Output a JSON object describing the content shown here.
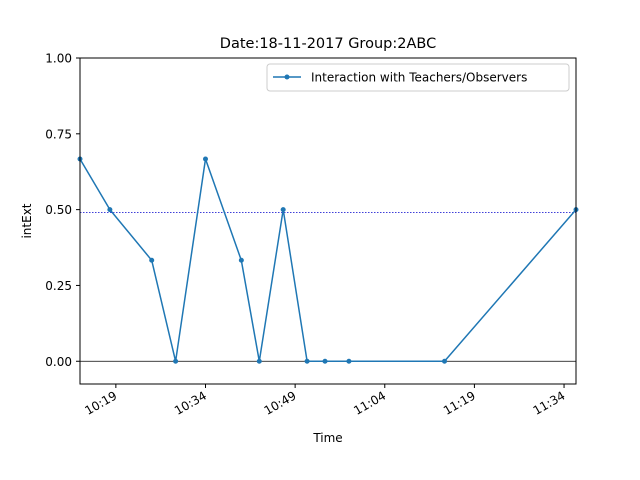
{
  "chart_data": {
    "type": "line",
    "title": "Date:18-11-2017  Group:2ABC",
    "xlabel": "Time",
    "ylabel": "intExt",
    "xlim": [
      "10:13",
      "11:36"
    ],
    "ylim": [
      -0.075,
      1.0
    ],
    "x_ticks": [
      "10:19",
      "10:34",
      "10:49",
      "11:04",
      "11:19",
      "11:34"
    ],
    "y_ticks": [
      "0.00",
      "0.25",
      "0.50",
      "0.75",
      "1.00"
    ],
    "y_tick_values": [
      0,
      0.25,
      0.5,
      0.75,
      1.0
    ],
    "grid": false,
    "legend_position": "top-right",
    "series": [
      {
        "name": "Interaction with Teachers/Observers",
        "color": "#1f77b4",
        "marker": "circle",
        "x": [
          "10:13",
          "10:18",
          "10:25",
          "10:29",
          "10:34",
          "10:40",
          "10:43",
          "10:47",
          "10:51",
          "10:54",
          "10:58",
          "11:14",
          "11:36"
        ],
        "values": [
          0.667,
          0.5,
          0.333,
          0.0,
          0.667,
          0.333,
          0.0,
          0.5,
          0.0,
          0.0,
          0.0,
          0.0,
          0.5
        ]
      }
    ],
    "reference_lines": [
      {
        "axis": "y",
        "value": 0.49,
        "color": "#0000cc",
        "style": "dotted"
      },
      {
        "axis": "y",
        "value": 0.0,
        "color": "#000000",
        "style": "solid"
      }
    ]
  }
}
